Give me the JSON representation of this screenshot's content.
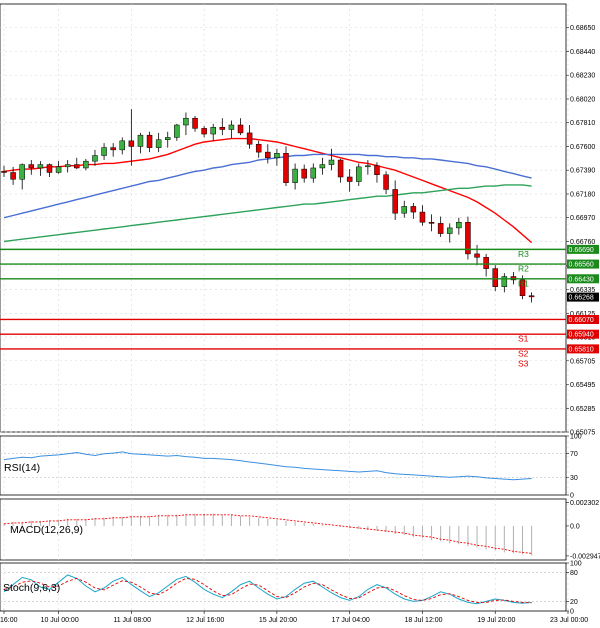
{
  "chart_data": {
    "type": "candlestick",
    "price_axis": {
      "ylim": [
        0.65075,
        0.6886
      ],
      "ticks": [
        "0.68650",
        "0.68440",
        "0.68230",
        "0.68020",
        "0.67810",
        "0.67600",
        "0.67390",
        "0.67180",
        "0.66970",
        "0.66760",
        "0.66545",
        "0.66335",
        "0.66125",
        "0.65915",
        "0.65705",
        "0.65495",
        "0.65285",
        "0.65075"
      ],
      "tick_values": [
        0.6865,
        0.6844,
        0.6823,
        0.6802,
        0.6781,
        0.676,
        0.6739,
        0.6718,
        0.6697,
        0.6676,
        0.66545,
        0.66335,
        0.66125,
        0.65915,
        0.65705,
        0.65495,
        0.65285,
        0.65075
      ]
    },
    "x_axis": {
      "labels": [
        "16:00",
        "10 Jul 00:00",
        "11 Jul 08:00",
        "12 Jul 16:00",
        "15 Jul 20:00",
        "17 Jul 04:00",
        "18 Jul 12:00",
        "19 Jul 20:00",
        "23 Jul 00:00"
      ],
      "label_positions": [
        0.0,
        6,
        14,
        22,
        30,
        38,
        46,
        54,
        62
      ],
      "candle_count": 65
    },
    "grid": true,
    "candles": [
      [
        0.6738,
        0.6743,
        0.6733,
        0.6737
      ],
      [
        0.6737,
        0.6742,
        0.6726,
        0.6731
      ],
      [
        0.6731,
        0.6745,
        0.6722,
        0.6744
      ],
      [
        0.6744,
        0.6748,
        0.6735,
        0.6741
      ],
      [
        0.6741,
        0.6747,
        0.6734,
        0.6744
      ],
      [
        0.6744,
        0.6745,
        0.6733,
        0.6737
      ],
      [
        0.6737,
        0.6747,
        0.6736,
        0.6742
      ],
      [
        0.6742,
        0.6748,
        0.6737,
        0.6744
      ],
      [
        0.6744,
        0.675,
        0.674,
        0.6741
      ],
      [
        0.6741,
        0.6749,
        0.6739,
        0.6747
      ],
      [
        0.6747,
        0.6757,
        0.6743,
        0.6752
      ],
      [
        0.6752,
        0.6763,
        0.6748,
        0.6759
      ],
      [
        0.6759,
        0.6763,
        0.6751,
        0.6757
      ],
      [
        0.6757,
        0.6768,
        0.6753,
        0.6765
      ],
      [
        0.6765,
        0.6793,
        0.6743,
        0.676
      ],
      [
        0.676,
        0.6772,
        0.6754,
        0.677
      ],
      [
        0.677,
        0.6773,
        0.6755,
        0.6759
      ],
      [
        0.6759,
        0.6772,
        0.6755,
        0.6766
      ],
      [
        0.6766,
        0.6773,
        0.6759,
        0.6768
      ],
      [
        0.6768,
        0.678,
        0.6765,
        0.6779
      ],
      [
        0.6779,
        0.679,
        0.677,
        0.6785
      ],
      [
        0.6785,
        0.6787,
        0.6773,
        0.6776
      ],
      [
        0.6776,
        0.6778,
        0.6768,
        0.6771
      ],
      [
        0.6771,
        0.678,
        0.6765,
        0.6777
      ],
      [
        0.6777,
        0.6785,
        0.677,
        0.6775
      ],
      [
        0.6775,
        0.6783,
        0.6767,
        0.6779
      ],
      [
        0.6779,
        0.6785,
        0.677,
        0.6772
      ],
      [
        0.6772,
        0.6779,
        0.6758,
        0.6762
      ],
      [
        0.6762,
        0.6765,
        0.675,
        0.6755
      ],
      [
        0.6755,
        0.6762,
        0.6745,
        0.675
      ],
      [
        0.675,
        0.6758,
        0.6743,
        0.6754
      ],
      [
        0.6754,
        0.676,
        0.6725,
        0.6728
      ],
      [
        0.6728,
        0.6745,
        0.6722,
        0.674
      ],
      [
        0.674,
        0.6744,
        0.6728,
        0.6732
      ],
      [
        0.6732,
        0.6745,
        0.6728,
        0.6741
      ],
      [
        0.6741,
        0.675,
        0.6735,
        0.6744
      ],
      [
        0.6744,
        0.6758,
        0.6739,
        0.6748
      ],
      [
        0.6748,
        0.6749,
        0.6728,
        0.6733
      ],
      [
        0.6733,
        0.674,
        0.672,
        0.6729
      ],
      [
        0.6729,
        0.6745,
        0.6725,
        0.6742
      ],
      [
        0.6742,
        0.6748,
        0.6735,
        0.6743
      ],
      [
        0.6743,
        0.6746,
        0.6728,
        0.6735
      ],
      [
        0.6735,
        0.6738,
        0.6718,
        0.6722
      ],
      [
        0.6722,
        0.673,
        0.6695,
        0.6701
      ],
      [
        0.6701,
        0.6712,
        0.6697,
        0.6707
      ],
      [
        0.6707,
        0.671,
        0.6696,
        0.6702
      ],
      [
        0.6702,
        0.6708,
        0.669,
        0.6693
      ],
      [
        0.6693,
        0.67,
        0.6685,
        0.6692
      ],
      [
        0.6692,
        0.6698,
        0.668,
        0.6683
      ],
      [
        0.6683,
        0.6692,
        0.6675,
        0.6688
      ],
      [
        0.6688,
        0.6697,
        0.6682,
        0.6693
      ],
      [
        0.6693,
        0.6698,
        0.666,
        0.6665
      ],
      [
        0.6665,
        0.6673,
        0.6655,
        0.6662
      ],
      [
        0.6662,
        0.6665,
        0.6645,
        0.6652
      ],
      [
        0.6652,
        0.6655,
        0.6632,
        0.6636
      ],
      [
        0.6636,
        0.6648,
        0.6631,
        0.6645
      ],
      [
        0.6645,
        0.6649,
        0.6638,
        0.6642
      ],
      [
        0.6642,
        0.6646,
        0.6625,
        0.6628
      ],
      [
        0.6628,
        0.6631,
        0.6622,
        0.6627
      ]
    ],
    "moving_averages": [
      {
        "color": "#ff0000",
        "values": [
          0.6738,
          0.6739,
          0.674,
          0.674,
          0.6741,
          0.6742,
          0.6742,
          0.6743,
          0.6743,
          0.6744,
          0.6744,
          0.6745,
          0.6745,
          0.6746,
          0.6747,
          0.6748,
          0.6749,
          0.6751,
          0.6753,
          0.6756,
          0.6759,
          0.6762,
          0.6764,
          0.6765,
          0.6766,
          0.6767,
          0.6767,
          0.6767,
          0.6766,
          0.6765,
          0.6764,
          0.6762,
          0.676,
          0.6758,
          0.6756,
          0.6754,
          0.6752,
          0.675,
          0.6748,
          0.6746,
          0.6745,
          0.6743,
          0.6741,
          0.6739,
          0.6736,
          0.6733,
          0.673,
          0.6727,
          0.6724,
          0.6721,
          0.6718,
          0.6715,
          0.6711,
          0.6706,
          0.6701,
          0.6695,
          0.6689,
          0.6682,
          0.6675
        ]
      },
      {
        "color": "#4a6fd4",
        "values": [
          0.6697,
          0.6699,
          0.6701,
          0.6703,
          0.6705,
          0.6707,
          0.6709,
          0.6711,
          0.6713,
          0.6715,
          0.6717,
          0.6719,
          0.6721,
          0.6723,
          0.6725,
          0.6727,
          0.6729,
          0.673,
          0.6732,
          0.6734,
          0.6736,
          0.6738,
          0.6739,
          0.6741,
          0.6742,
          0.6744,
          0.6745,
          0.6746,
          0.6748,
          0.6749,
          0.675,
          0.6751,
          0.6752,
          0.6752,
          0.6753,
          0.6753,
          0.6753,
          0.6753,
          0.6753,
          0.6753,
          0.6752,
          0.6752,
          0.6751,
          0.6751,
          0.675,
          0.675,
          0.6749,
          0.6749,
          0.6748,
          0.6747,
          0.6746,
          0.6745,
          0.6743,
          0.6742,
          0.674,
          0.6738,
          0.6736,
          0.6734,
          0.6732
        ]
      },
      {
        "color": "#2ea35a",
        "values": [
          0.6676,
          0.6677,
          0.6678,
          0.6679,
          0.668,
          0.6681,
          0.6682,
          0.6683,
          0.6684,
          0.6685,
          0.6686,
          0.6687,
          0.6688,
          0.6689,
          0.669,
          0.6691,
          0.6692,
          0.6693,
          0.6694,
          0.6695,
          0.6696,
          0.6697,
          0.6698,
          0.6699,
          0.67,
          0.6701,
          0.6702,
          0.6703,
          0.6704,
          0.6705,
          0.6706,
          0.6707,
          0.6708,
          0.6709,
          0.6709,
          0.671,
          0.6711,
          0.6712,
          0.6713,
          0.6714,
          0.6715,
          0.6716,
          0.6716,
          0.6717,
          0.6718,
          0.6719,
          0.6719,
          0.672,
          0.6721,
          0.6722,
          0.6723,
          0.6723,
          0.6724,
          0.6725,
          0.6725,
          0.6726,
          0.6726,
          0.6726,
          0.6725
        ]
      }
    ],
    "levels": [
      {
        "name": "R3",
        "value": 0.6669,
        "label": "0.66690",
        "color": "#1a8a1a"
      },
      {
        "name": "R2",
        "value": 0.6656,
        "label": "0.66560",
        "color": "#1a8a1a"
      },
      {
        "name": "R1",
        "value": 0.6643,
        "label": "0.66430",
        "color": "#1a8a1a"
      },
      {
        "name": "",
        "value": 0.6607,
        "label": "0.66070",
        "color": "#e00000"
      },
      {
        "name": "S1",
        "value": 0.6594,
        "label": "0.65940",
        "color": "#e00000"
      },
      {
        "name": "S2",
        "value": 0.6581,
        "label": "0.65810",
        "color": "#e00000"
      }
    ],
    "support_extra_label": "S3",
    "current_price": {
      "label": "0.66268",
      "value": 0.66268
    },
    "rsi": {
      "title": "RSI(14)",
      "ticks": [
        "100",
        "70",
        "30",
        "0"
      ],
      "tick_values": [
        100,
        70,
        30,
        0
      ],
      "color": "#3a8fe0",
      "values": [
        60,
        62,
        64,
        63,
        66,
        67,
        68,
        70,
        72,
        69,
        67,
        70,
        71,
        73,
        70,
        69,
        68,
        67,
        66,
        67,
        65,
        64,
        62,
        62,
        61,
        60,
        58,
        56,
        54,
        52,
        50,
        48,
        47,
        45,
        44,
        43,
        42,
        41,
        40,
        39,
        40,
        41,
        38,
        36,
        35,
        34,
        33,
        32,
        31,
        30,
        31,
        32,
        31,
        29,
        28,
        27,
        26,
        27,
        28
      ]
    },
    "macd": {
      "title": "MACD(12,26,9)",
      "ticks": [
        "0.002302",
        "0.0",
        "-0.002947"
      ],
      "tick_values": [
        0.002302,
        0.0,
        -0.002947
      ],
      "histogram_color": "#b0b0b0",
      "signal_color": "#ff0000",
      "histogram": [
        0.0003,
        0.0004,
        0.0004,
        0.0005,
        0.0005,
        0.0006,
        0.0006,
        0.0007,
        0.0007,
        0.0007,
        0.0008,
        0.0008,
        0.0009,
        0.0009,
        0.001,
        0.001,
        0.001,
        0.0011,
        0.0011,
        0.0011,
        0.0012,
        0.0012,
        0.0012,
        0.0012,
        0.0011,
        0.0011,
        0.001,
        0.0009,
        0.0008,
        0.0007,
        0.0006,
        0.0005,
        0.0004,
        0.0003,
        0.0002,
        0.0001,
        0.0,
        -0.0001,
        -0.0002,
        -0.0003,
        -0.0004,
        -0.0005,
        -0.0006,
        -0.0008,
        -0.0009,
        -0.0011,
        -0.0012,
        -0.0014,
        -0.0015,
        -0.0017,
        -0.0018,
        -0.002,
        -0.0021,
        -0.0023,
        -0.0024,
        -0.0026,
        -0.0027,
        -0.0028,
        -0.0029
      ],
      "signal": [
        0.0002,
        0.0003,
        0.0003,
        0.0004,
        0.0004,
        0.0005,
        0.0005,
        0.0006,
        0.0006,
        0.0006,
        0.0007,
        0.0007,
        0.0008,
        0.0008,
        0.0009,
        0.0009,
        0.0009,
        0.001,
        0.001,
        0.001,
        0.0011,
        0.0011,
        0.0011,
        0.0011,
        0.0011,
        0.0011,
        0.001,
        0.001,
        0.0009,
        0.0008,
        0.0007,
        0.0006,
        0.0005,
        0.0004,
        0.0003,
        0.0002,
        0.0001,
        0.0,
        -0.0001,
        -0.0002,
        -0.0003,
        -0.0004,
        -0.0005,
        -0.0006,
        -0.0007,
        -0.0009,
        -0.001,
        -0.0011,
        -0.0013,
        -0.0014,
        -0.0016,
        -0.0017,
        -0.0019,
        -0.002,
        -0.0022,
        -0.0023,
        -0.0025,
        -0.0026,
        -0.0027
      ]
    },
    "stoch": {
      "title": "Stoch(9,6,3)",
      "ticks": [
        "100",
        "80",
        "20",
        "0"
      ],
      "tick_values": [
        100,
        80,
        20,
        0
      ],
      "k_color": "#1aa7c9",
      "d_color": "#e00000",
      "k": [
        40,
        55,
        70,
        65,
        50,
        45,
        60,
        75,
        68,
        52,
        40,
        48,
        62,
        70,
        55,
        42,
        30,
        38,
        52,
        66,
        72,
        60,
        45,
        35,
        28,
        40,
        55,
        62,
        48,
        35,
        25,
        30,
        45,
        58,
        62,
        50,
        38,
        28,
        22,
        30,
        45,
        55,
        48,
        35,
        25,
        20,
        22,
        30,
        40,
        35,
        25,
        18,
        15,
        20,
        25,
        22,
        18,
        16,
        18
      ],
      "d": [
        45,
        50,
        60,
        63,
        58,
        50,
        52,
        62,
        68,
        60,
        48,
        44,
        54,
        63,
        60,
        50,
        38,
        34,
        44,
        58,
        68,
        66,
        55,
        42,
        32,
        34,
        46,
        56,
        54,
        42,
        30,
        28,
        38,
        50,
        58,
        55,
        44,
        34,
        26,
        27,
        38,
        48,
        50,
        42,
        32,
        24,
        22,
        26,
        34,
        36,
        30,
        22,
        18,
        18,
        22,
        23,
        20,
        18,
        17
      ]
    }
  }
}
